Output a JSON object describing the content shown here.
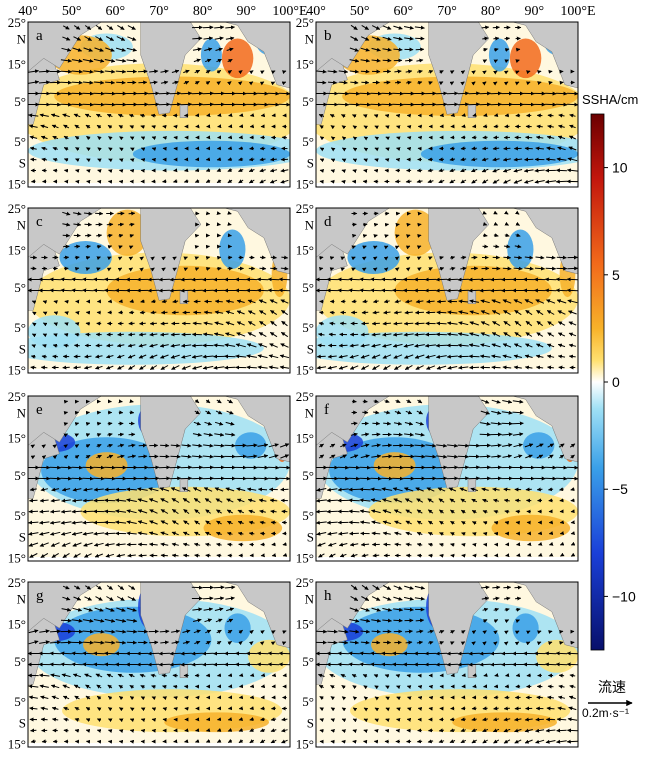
{
  "panels": [
    {
      "label": "a",
      "ssha_pattern": "positive-north-warm-south"
    },
    {
      "label": "b",
      "ssha_pattern": "positive-north-warm-south"
    },
    {
      "label": "c",
      "ssha_pattern": "mixed-transition"
    },
    {
      "label": "d",
      "ssha_pattern": "mixed-transition"
    },
    {
      "label": "e",
      "ssha_pattern": "negative-north-arabian"
    },
    {
      "label": "f",
      "ssha_pattern": "negative-north-arabian"
    },
    {
      "label": "g",
      "ssha_pattern": "negative-north-strong"
    },
    {
      "label": "h",
      "ssha_pattern": "negative-north-strong"
    }
  ],
  "axes": {
    "lon_ticks": [
      "40°",
      "50°",
      "60°",
      "70°",
      "80°",
      "90°",
      "100°E"
    ],
    "lat_ticks": [
      "25°",
      "N",
      "15°",
      "5°",
      "5°",
      "S",
      "15°"
    ]
  },
  "colorbar": {
    "title": "SSHA/cm",
    "ticks": [
      "10",
      "5",
      "0",
      "−5",
      "−10"
    ],
    "range": [
      -12.5,
      12.5
    ],
    "colors": [
      "#08106b",
      "#1a3fd8",
      "#3aa0e8",
      "#9fe0f5",
      "#ffffff",
      "#ffe070",
      "#f7b22a",
      "#f26a1b",
      "#c2160d",
      "#6b0000"
    ]
  },
  "vector_legend": {
    "title": "流速",
    "label": "0.2m·s⁻¹"
  },
  "land_color": "#c8c8c8",
  "arrow_color": "#000000"
}
